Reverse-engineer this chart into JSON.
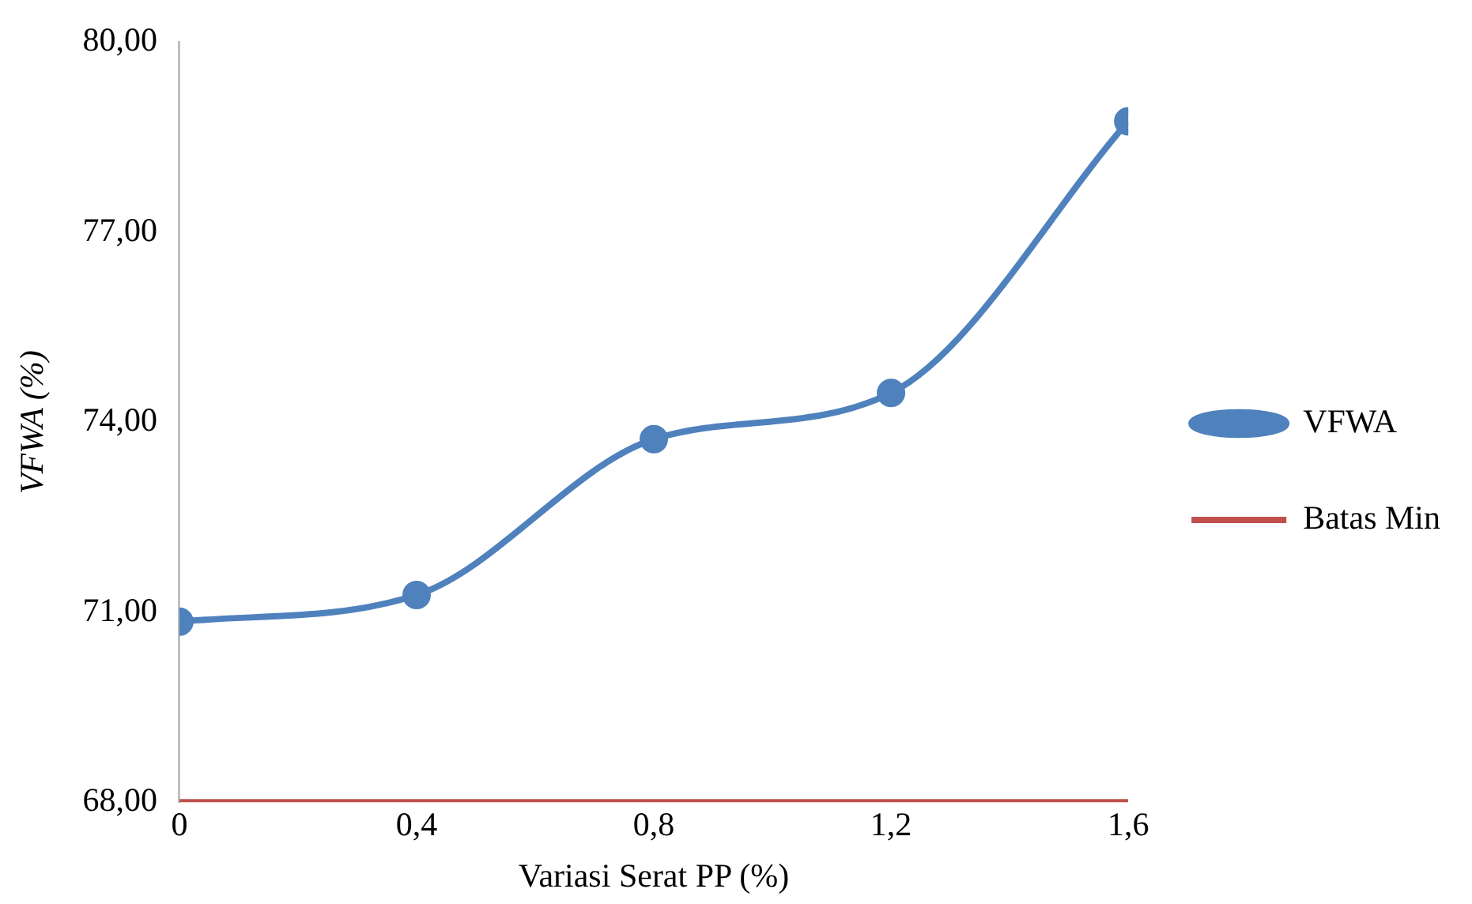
{
  "chart_data": {
    "type": "line",
    "xlabel": "Variasi Serat PP (%)",
    "ylabel": "VFWA (%)",
    "x": [
      0,
      0.4,
      0.8,
      1.2,
      1.6
    ],
    "series": [
      {
        "name": "VFWA",
        "color": "#4f81bd",
        "values": [
          70.85,
          71.27,
          73.73,
          74.46,
          78.75
        ],
        "marker": "circle"
      },
      {
        "name": "Batas Min",
        "color": "#c0504d",
        "values": [
          68,
          68,
          68,
          68,
          68
        ],
        "marker": "none"
      }
    ],
    "xlim": [
      0,
      1.6
    ],
    "xticks": [
      {
        "value": 0,
        "label": "0"
      },
      {
        "value": 0.4,
        "label": "0,4"
      },
      {
        "value": 0.8,
        "label": "0,8"
      },
      {
        "value": 1.2,
        "label": "1,2"
      },
      {
        "value": 1.6,
        "label": "1,6"
      }
    ],
    "ylim": [
      68,
      80
    ],
    "yticks": [
      {
        "value": 68,
        "label": "68,00"
      },
      {
        "value": 71,
        "label": "71,00"
      },
      {
        "value": 74,
        "label": "74,00"
      },
      {
        "value": 77,
        "label": "77,00"
      },
      {
        "value": 80,
        "label": "80,00"
      }
    ],
    "grid": false,
    "legend": "right"
  }
}
